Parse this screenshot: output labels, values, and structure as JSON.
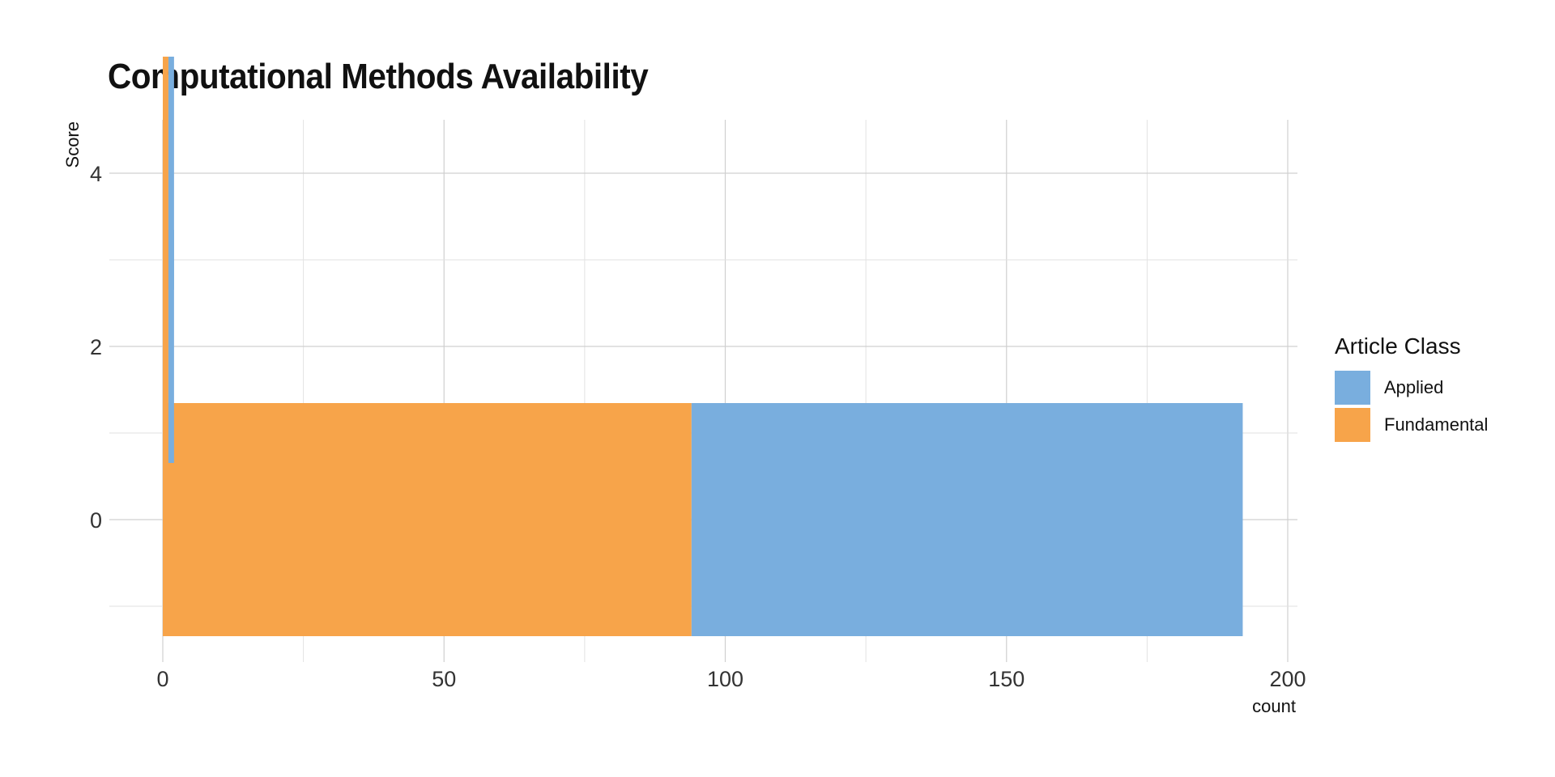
{
  "chart_data": {
    "type": "bar",
    "orientation": "horizontal",
    "stacked": true,
    "title": "Computational Methods Availability",
    "xlabel": "count",
    "ylabel": "Score",
    "categories": [
      0,
      2,
      4
    ],
    "series": [
      {
        "name": "Fundamental",
        "color": "#F7A44A",
        "values": [
          94,
          1,
          1
        ]
      },
      {
        "name": "Applied",
        "color": "#79AEDE",
        "values": [
          98,
          1,
          1
        ]
      }
    ],
    "xlim": [
      0,
      200
    ],
    "x_ticks": [
      0,
      50,
      100,
      150,
      200
    ],
    "y_ticks": [
      0,
      2,
      4
    ],
    "grid": true,
    "legend": {
      "title": "Article Class",
      "position": "right",
      "items": [
        {
          "label": "Applied",
          "color": "#79AEDE"
        },
        {
          "label": "Fundamental",
          "color": "#F7A44A"
        }
      ]
    }
  }
}
